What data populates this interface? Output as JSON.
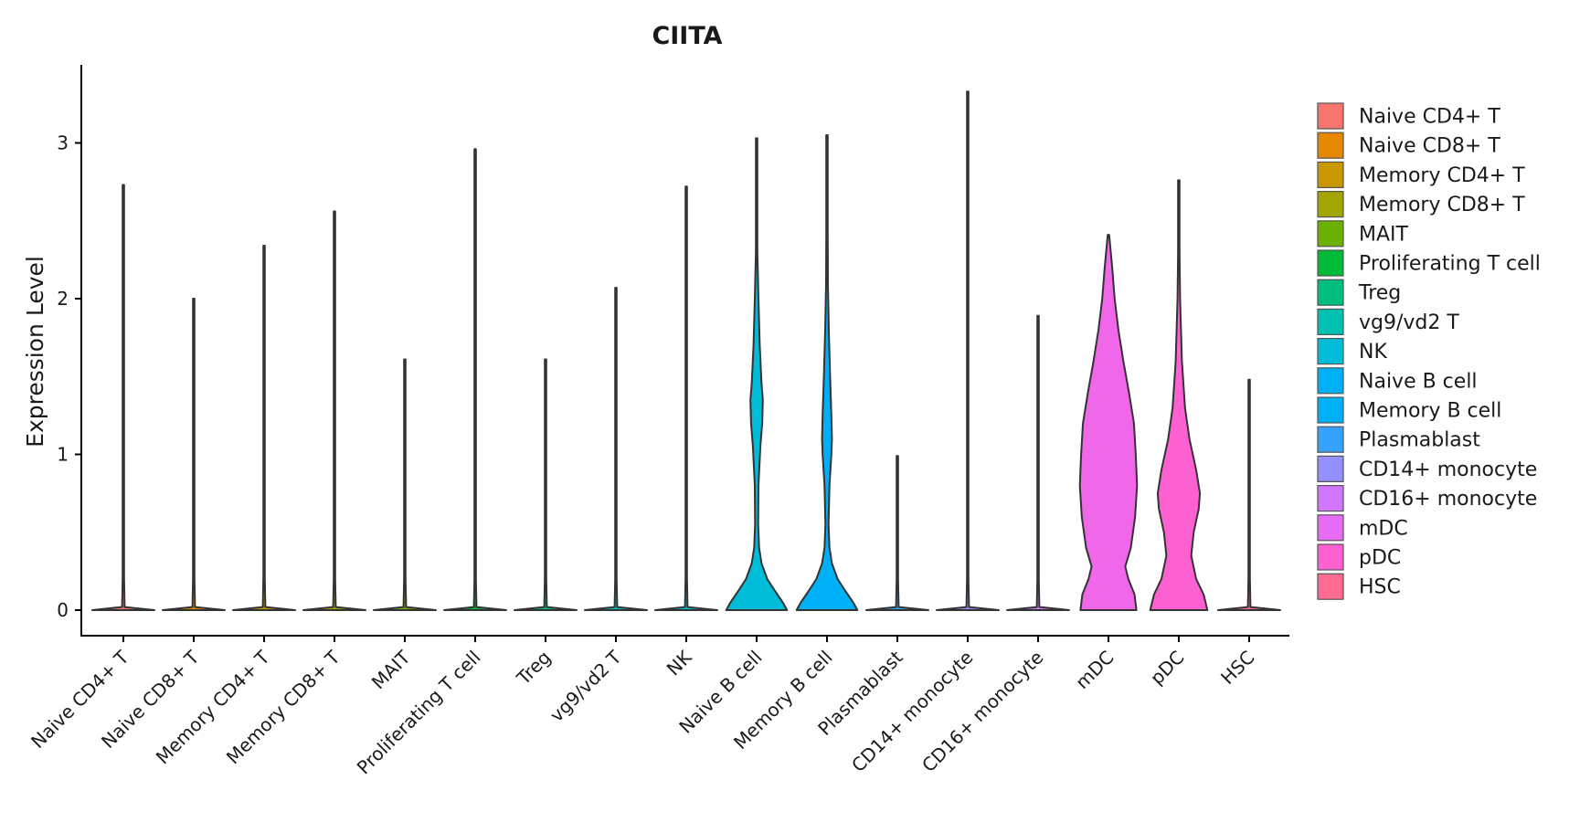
{
  "chart_data": {
    "type": "violin",
    "title": "CIITA",
    "xlabel": "",
    "ylabel": "Expression Level",
    "ylim": [
      -0.17,
      3.5
    ],
    "yticks": [
      0,
      1,
      2,
      3
    ],
    "legend_position": "right",
    "categories": [
      "Naive CD4+ T",
      "Naive CD8+ T",
      "Memory CD4+ T",
      "Memory CD8+ T",
      "MAIT",
      "Proliferating T cell",
      "Treg",
      "vg9/vd2 T",
      "NK",
      "Naive B cell",
      "Memory B cell",
      "Plasmablast",
      "CD14+ monocyte",
      "CD16+ monocyte",
      "mDC",
      "pDC",
      "HSC"
    ],
    "colors": [
      "#F8766D",
      "#E58700",
      "#C99800",
      "#A3A500",
      "#6BB100",
      "#00BA38",
      "#00BF7D",
      "#00C0AF",
      "#00BCD8",
      "#00B0F6",
      "#619CFF",
      "#B983FF",
      "#E76BF3",
      "#FD61D1",
      "#FF67A4",
      "#F8766D",
      "#FF6C91"
    ],
    "legend_colors": [
      "#F8766D",
      "#E58700",
      "#C99800",
      "#A3A500",
      "#6BB100",
      "#00BA38",
      "#00BF7D",
      "#00C0AF",
      "#00BCD8",
      "#00B0F6",
      "#00B0F6",
      "#35A2FF",
      "#9590FF",
      "#D376FF",
      "#E76BF3",
      "#FD61D1",
      "#FF6C91"
    ],
    "fill_colors": [
      "#F8766D",
      "#E58700",
      "#C99800",
      "#A3A500",
      "#6BB100",
      "#00BA38",
      "#00BF7D",
      "#00C0AF",
      "#00BCD8",
      "#00BCD8",
      "#00B0F6",
      "#35A2FF",
      "#9590FF",
      "#D376FF",
      "#F067EA",
      "#FD61D1",
      "#FF6C91"
    ],
    "max_values": [
      2.73,
      2.0,
      2.34,
      2.56,
      1.61,
      2.96,
      1.61,
      2.07,
      2.72,
      3.03,
      3.05,
      0.99,
      3.33,
      1.89,
      2.41,
      2.76,
      1.48
    ],
    "violin_profiles": [
      {
        "y": [
          0,
          0.02,
          0.2,
          2.73
        ],
        "w": [
          0.5,
          0.02,
          0.003,
          0.003
        ]
      },
      {
        "y": [
          0,
          0.02,
          0.2,
          2.0
        ],
        "w": [
          0.5,
          0.02,
          0.003,
          0.003
        ]
      },
      {
        "y": [
          0,
          0.02,
          0.2,
          2.34
        ],
        "w": [
          0.5,
          0.02,
          0.003,
          0.003
        ]
      },
      {
        "y": [
          0,
          0.02,
          0.2,
          2.56
        ],
        "w": [
          0.5,
          0.02,
          0.003,
          0.003
        ]
      },
      {
        "y": [
          0,
          0.02,
          0.2,
          1.61
        ],
        "w": [
          0.5,
          0.02,
          0.003,
          0.003
        ]
      },
      {
        "y": [
          0,
          0.02,
          0.2,
          2.96
        ],
        "w": [
          0.5,
          0.02,
          0.003,
          0.003
        ]
      },
      {
        "y": [
          0,
          0.02,
          0.2,
          1.61
        ],
        "w": [
          0.5,
          0.02,
          0.003,
          0.003
        ]
      },
      {
        "y": [
          0,
          0.02,
          0.2,
          2.07
        ],
        "w": [
          0.5,
          0.02,
          0.003,
          0.003
        ]
      },
      {
        "y": [
          0,
          0.02,
          0.2,
          2.72
        ],
        "w": [
          0.5,
          0.02,
          0.003,
          0.003
        ]
      },
      {
        "y": [
          0,
          0.05,
          0.12,
          0.2,
          0.3,
          0.4,
          0.55,
          0.8,
          1.05,
          1.2,
          1.35,
          1.45,
          1.7,
          2.0,
          2.3,
          2.6,
          3.03
        ],
        "w": [
          0.49,
          0.42,
          0.3,
          0.17,
          0.08,
          0.04,
          0.025,
          0.03,
          0.06,
          0.09,
          0.1,
          0.08,
          0.05,
          0.03,
          0.012,
          0.004,
          0.002
        ]
      },
      {
        "y": [
          0,
          0.05,
          0.12,
          0.2,
          0.3,
          0.4,
          0.55,
          0.8,
          1.0,
          1.1,
          1.25,
          1.5,
          1.8,
          2.1,
          2.4,
          3.05
        ],
        "w": [
          0.49,
          0.42,
          0.3,
          0.17,
          0.08,
          0.04,
          0.025,
          0.04,
          0.07,
          0.08,
          0.07,
          0.05,
          0.03,
          0.015,
          0.005,
          0.002
        ]
      },
      {
        "y": [
          0,
          0.02,
          0.2,
          0.99
        ],
        "w": [
          0.5,
          0.02,
          0.003,
          0.003
        ]
      },
      {
        "y": [
          0,
          0.02,
          0.2,
          3.33
        ],
        "w": [
          0.5,
          0.02,
          0.003,
          0.003
        ]
      },
      {
        "y": [
          0,
          0.02,
          0.2,
          1.89
        ],
        "w": [
          0.5,
          0.02,
          0.003,
          0.003
        ]
      },
      {
        "y": [
          0,
          0.1,
          0.2,
          0.28,
          0.4,
          0.6,
          0.8,
          1.0,
          1.2,
          1.4,
          1.6,
          1.8,
          2.0,
          2.2,
          2.41
        ],
        "w": [
          0.45,
          0.42,
          0.32,
          0.27,
          0.36,
          0.43,
          0.46,
          0.44,
          0.41,
          0.33,
          0.24,
          0.16,
          0.1,
          0.06,
          0.01
        ]
      },
      {
        "y": [
          0,
          0.1,
          0.2,
          0.35,
          0.5,
          0.65,
          0.75,
          0.9,
          1.1,
          1.3,
          1.6,
          2.0,
          2.3,
          2.76
        ],
        "w": [
          0.46,
          0.4,
          0.28,
          0.2,
          0.24,
          0.32,
          0.34,
          0.28,
          0.17,
          0.1,
          0.05,
          0.02,
          0.008,
          0.003
        ]
      },
      {
        "y": [
          0,
          0.02,
          0.2,
          1.48
        ],
        "w": [
          0.5,
          0.02,
          0.003,
          0.003
        ]
      }
    ]
  }
}
